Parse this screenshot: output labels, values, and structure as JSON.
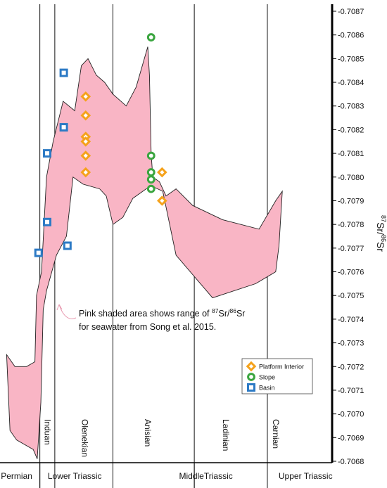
{
  "chart_data": {
    "type": "scatter",
    "ylabel": {
      "pre_sup": "87",
      "base1": "Sr/",
      "mid_sup": "86",
      "base2": "Sr"
    },
    "ylim": [
      0.7068,
      0.7087
    ],
    "yticks": [
      "0.7068",
      "0.7069",
      "0.7070",
      "0.7071",
      "0.7072",
      "0.7073",
      "0.7074",
      "0.7075",
      "0.7076",
      "0.7077",
      "0.7078",
      "0.7079",
      "0.7080",
      "0.7081",
      "0.7082",
      "0.7083",
      "0.7084",
      "0.7085",
      "0.7086",
      "0.7087"
    ],
    "xlim": [
      0,
      100
    ],
    "stage_boundaries": [
      12,
      16.5,
      34,
      58.5,
      80.5
    ],
    "stages": [
      {
        "name": "Induan",
        "x": 14.3
      },
      {
        "name": "Olenekian",
        "x": 25.5
      },
      {
        "name": "Anisian",
        "x": 44.5
      },
      {
        "name": "Ladinian",
        "x": 68
      },
      {
        "name": "Carnian",
        "x": 83
      }
    ],
    "periods": [
      {
        "name": "Permian",
        "x": 5
      },
      {
        "name": "Lower Triassic",
        "x": 22.5
      },
      {
        "name": "MiddleTriassic",
        "x": 62
      },
      {
        "name": "Upper Triassic",
        "x": 92
      }
    ],
    "seawater_range": {
      "fill": "#f9b5c5",
      "upper": [
        [
          2,
          0.70725
        ],
        [
          4.5,
          0.7072
        ],
        [
          8,
          0.7072
        ],
        [
          10.5,
          0.70722
        ],
        [
          11,
          0.7075
        ],
        [
          12.5,
          0.7076
        ],
        [
          14,
          0.708
        ],
        [
          16,
          0.70815
        ],
        [
          19,
          0.70832
        ],
        [
          22.5,
          0.70828
        ],
        [
          24.5,
          0.70847
        ],
        [
          26.5,
          0.7085
        ],
        [
          29,
          0.70843
        ],
        [
          31.5,
          0.7084
        ],
        [
          34,
          0.70835
        ],
        [
          38,
          0.7083
        ],
        [
          41,
          0.70838
        ],
        [
          44.5,
          0.70855
        ],
        [
          45,
          0.70843
        ],
        [
          45.5,
          0.7081
        ],
        [
          46,
          0.708
        ],
        [
          48,
          0.70798
        ],
        [
          50,
          0.70792
        ],
        [
          53,
          0.70795
        ],
        [
          58,
          0.70788
        ],
        [
          67,
          0.70782
        ],
        [
          78,
          0.70778
        ],
        [
          83,
          0.7079
        ],
        [
          85,
          0.70794
        ]
      ],
      "lower": [
        [
          85,
          0.70794
        ],
        [
          84,
          0.70771
        ],
        [
          83,
          0.7076
        ],
        [
          77,
          0.70755
        ],
        [
          64,
          0.70749
        ],
        [
          53,
          0.70767
        ],
        [
          49,
          0.70794
        ],
        [
          46,
          0.70796
        ],
        [
          44,
          0.70795
        ],
        [
          40,
          0.70791
        ],
        [
          37,
          0.70783
        ],
        [
          34,
          0.7078
        ],
        [
          32,
          0.70792
        ],
        [
          30,
          0.70795
        ],
        [
          25,
          0.70797
        ],
        [
          22,
          0.708
        ],
        [
          20,
          0.70775
        ],
        [
          17,
          0.70767
        ],
        [
          14,
          0.70752
        ],
        [
          13,
          0.70744
        ],
        [
          12.3,
          0.70705
        ],
        [
          11.2,
          0.70681
        ],
        [
          10,
          0.70685
        ],
        [
          5,
          0.70689
        ],
        [
          3,
          0.70693
        ],
        [
          2,
          0.70725
        ]
      ]
    },
    "series": [
      {
        "name": "Platform Interior",
        "marker": "diamond",
        "color": "#f5a21b",
        "points": [
          [
            25.8,
            0.70834
          ],
          [
            25.8,
            0.70826
          ],
          [
            25.8,
            0.70817
          ],
          [
            25.8,
            0.70815
          ],
          [
            25.8,
            0.70809
          ],
          [
            25.8,
            0.70802
          ],
          [
            48.8,
            0.70802
          ],
          [
            48.8,
            0.7079
          ]
        ]
      },
      {
        "name": "Slope",
        "marker": "circle",
        "color": "#3aa53f",
        "points": [
          [
            45.5,
            0.70859
          ],
          [
            45.5,
            0.70809
          ],
          [
            45.5,
            0.70802
          ],
          [
            45.5,
            0.70799
          ],
          [
            45.5,
            0.70795
          ]
        ]
      },
      {
        "name": "Basin",
        "marker": "square",
        "color": "#2c7ac5",
        "points": [
          [
            19.2,
            0.70844
          ],
          [
            19.2,
            0.70821
          ],
          [
            14.2,
            0.7081
          ],
          [
            14.2,
            0.70781
          ],
          [
            11.6,
            0.70768
          ],
          [
            20.3,
            0.70771
          ]
        ]
      }
    ],
    "annotation": {
      "line1_pre": "Pink shaded area shows range of ",
      "line1_sup1": "87",
      "line1_mid": "Sr/",
      "line1_sup2": "86",
      "line1_end": "Sr",
      "line2": "for seawater from Song et al. 2015."
    },
    "legend": {
      "placement": "bottom-right"
    }
  }
}
